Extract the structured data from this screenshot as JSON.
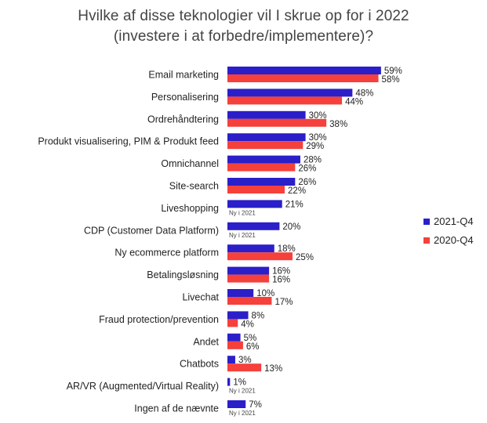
{
  "chart_data": {
    "type": "bar",
    "orientation": "horizontal",
    "title_line1": "Hvilke af disse teknologier vil I skrue op for i 2022",
    "title_line2": "(investere i at forbedre/implementere)?",
    "categories": [
      "Email marketing",
      "Personalisering",
      "Ordrehåndtering",
      "Produkt visualisering, PIM & Produkt feed",
      "Omnichannel",
      "Site-search",
      "Liveshopping",
      "CDP (Customer Data Platform)",
      "Ny ecommerce platform",
      "Betalingsløsning",
      "Livechat",
      "Fraud protection/prevention",
      "Andet",
      "Chatbots",
      "AR/VR (Augmented/Virtual Reality)",
      "Ingen af de nævnte"
    ],
    "series": [
      {
        "name": "2021-Q4",
        "color": "#2a1fc9",
        "values": [
          59,
          48,
          30,
          30,
          28,
          26,
          21,
          20,
          18,
          16,
          10,
          8,
          5,
          3,
          1,
          7
        ]
      },
      {
        "name": "2020-Q4",
        "color": "#f5403b",
        "values": [
          58,
          44,
          38,
          29,
          26,
          22,
          null,
          null,
          25,
          16,
          17,
          4,
          6,
          13,
          null,
          null
        ]
      }
    ],
    "missing_note": "Ny i 2021",
    "value_suffix": "%",
    "xlim": [
      0,
      100
    ],
    "legend_position": "right"
  }
}
